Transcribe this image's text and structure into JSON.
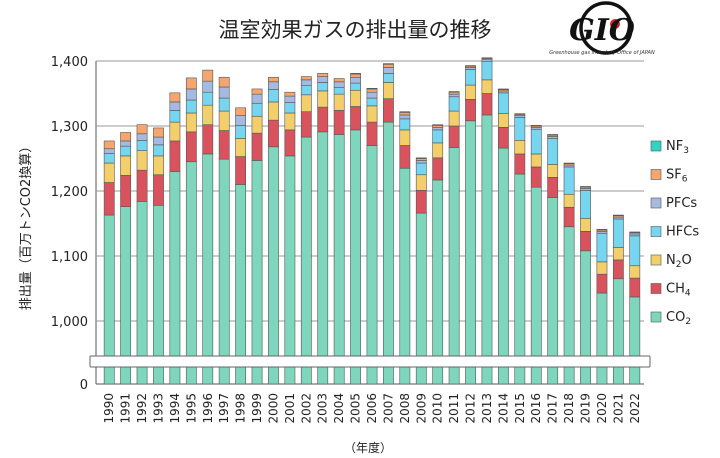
{
  "chart_data": {
    "type": "bar",
    "stacked": true,
    "title": "温室効果ガスの排出量の推移",
    "ylabel": "排出量（百万トンCO2換算）",
    "xlabel": "（年度）",
    "ylim": [
      0,
      1400
    ],
    "yaxis_break": [
      0,
      950
    ],
    "yticks": [
      "0",
      "1,000",
      "1,100",
      "1,200",
      "1,300",
      "1,400"
    ],
    "grid": true,
    "legend_position": "right",
    "categories": [
      "1990",
      "1991",
      "1992",
      "1993",
      "1994",
      "1995",
      "1996",
      "1997",
      "1998",
      "1999",
      "2000",
      "2001",
      "2002",
      "2003",
      "2004",
      "2005",
      "2006",
      "2007",
      "2008",
      "2009",
      "2010",
      "2011",
      "2012",
      "2013",
      "2014",
      "2015",
      "2016",
      "2017",
      "2018",
      "2019",
      "2020",
      "2021",
      "2022"
    ],
    "series": [
      {
        "name": "CO2",
        "color": "#7ed6bd",
        "values": [
          1163,
          1176,
          1184,
          1178,
          1230,
          1245,
          1257,
          1249,
          1210,
          1247,
          1268,
          1254,
          1283,
          1291,
          1287,
          1294,
          1270,
          1306,
          1235,
          1166,
          1217,
          1267,
          1308,
          1317,
          1266,
          1226,
          1206,
          1190,
          1145,
          1108,
          1043,
          1065,
          1037
        ]
      },
      {
        "name": "CH4",
        "color": "#d9535e",
        "values": [
          50,
          48,
          48,
          47,
          47,
          46,
          45,
          44,
          43,
          42,
          41,
          40,
          39,
          38,
          37,
          36,
          36,
          36,
          35,
          35,
          34,
          33,
          33,
          33,
          32,
          31,
          31,
          31,
          30,
          30,
          29,
          29,
          29
        ]
      },
      {
        "name": "N2O",
        "color": "#f2cf6b",
        "values": [
          30,
          30,
          30,
          29,
          29,
          29,
          30,
          30,
          28,
          26,
          28,
          26,
          26,
          25,
          25,
          25,
          25,
          25,
          24,
          24,
          23,
          23,
          22,
          21,
          21,
          21,
          20,
          20,
          20,
          20,
          19,
          19,
          19
        ]
      },
      {
        "name": "HFCs",
        "color": "#76d5ef",
        "values": [
          15,
          15,
          16,
          17,
          18,
          20,
          20,
          20,
          20,
          20,
          19,
          16,
          14,
          13,
          10,
          11,
          12,
          14,
          17,
          18,
          20,
          22,
          24,
          28,
          32,
          35,
          38,
          40,
          42,
          43,
          44,
          44,
          46
        ]
      },
      {
        "name": "PFCs",
        "color": "#a6b9e0",
        "values": [
          7,
          8,
          10,
          12,
          13,
          17,
          17,
          17,
          15,
          14,
          12,
          10,
          9,
          9,
          9,
          9,
          9,
          9,
          6,
          4,
          4,
          4,
          3,
          3,
          3,
          3,
          3,
          3,
          3,
          3,
          3,
          3,
          3
        ]
      },
      {
        "name": "SF6",
        "color": "#f5a66e",
        "values": [
          12,
          13,
          14,
          14,
          14,
          17,
          17,
          15,
          12,
          8,
          7,
          6,
          5,
          5,
          5,
          5,
          5,
          5,
          4,
          3,
          3,
          3,
          2,
          2,
          2,
          2,
          2,
          2,
          2,
          2,
          2,
          2,
          2
        ]
      },
      {
        "name": "NF3",
        "color": "#2ed5c5",
        "values": [
          0,
          0,
          0,
          0,
          0,
          0,
          0,
          0,
          0,
          0,
          0,
          0,
          0,
          0,
          0,
          1,
          1,
          1,
          1,
          1,
          1,
          1,
          1,
          1,
          1,
          1,
          1,
          1,
          1,
          1,
          1,
          1,
          1
        ]
      }
    ]
  },
  "logo": {
    "text": "GIO",
    "subtitle": "Greenhouse gas Inventory Office of JAPAN"
  }
}
